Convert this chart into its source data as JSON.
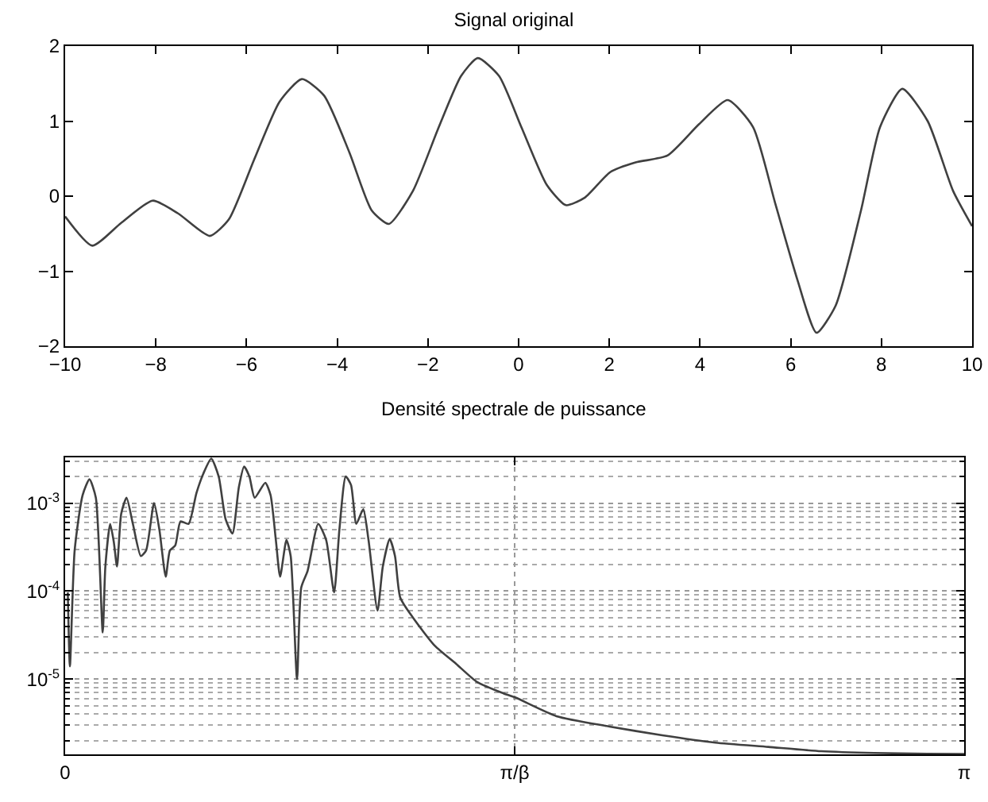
{
  "chart_data": [
    {
      "type": "line",
      "title": "Signal original",
      "x": [
        -10,
        -9.4,
        -8.77,
        -8.07,
        -7.51,
        -6.81,
        -6.39,
        -5.83,
        -5.27,
        -4.78,
        -4.29,
        -3.73,
        -3.24,
        -2.86,
        -2.33,
        -1.76,
        -1.27,
        -0.9,
        -0.43,
        0.06,
        0.62,
        1.04,
        1.46,
        2.02,
        2.58,
        3.28,
        3.98,
        4.61,
        5.17,
        5.66,
        6.15,
        6.57,
        6.99,
        7.55,
        7.97,
        8.46,
        9.02,
        9.58,
        10
      ],
      "series": [
        {
          "color": "#404040",
          "values": [
            -0.27,
            -0.66,
            -0.36,
            -0.06,
            -0.23,
            -0.53,
            -0.31,
            0.49,
            1.26,
            1.56,
            1.34,
            0.58,
            -0.19,
            -0.37,
            0.07,
            0.92,
            1.6,
            1.84,
            1.6,
            0.92,
            0.15,
            -0.12,
            -0.02,
            0.32,
            0.45,
            0.54,
            0.96,
            1.28,
            0.92,
            -0.1,
            -1.12,
            -1.82,
            -1.46,
            -0.19,
            0.92,
            1.43,
            1,
            0.07,
            -0.4
          ]
        }
      ],
      "xlim": [
        -10,
        10
      ],
      "ylim": [
        -2,
        2
      ],
      "xticks": [
        -10,
        -8,
        -6,
        -4,
        -2,
        0,
        2,
        4,
        6,
        8,
        10
      ],
      "yticks": [
        -2,
        -1,
        0,
        1,
        2
      ],
      "grid": false
    },
    {
      "type": "line",
      "title": "Densité spectrale de puissance",
      "x": [
        0.0093,
        0.0167,
        0.0333,
        0.0611,
        0.0851,
        0.1073,
        0.1314,
        0.1406,
        0.1573,
        0.1702,
        0.1813,
        0.1961,
        0.2146,
        0.2368,
        0.2646,
        0.2831,
        0.3108,
        0.3293,
        0.3515,
        0.3663,
        0.3848,
        0.4033,
        0.4311,
        0.4589,
        0.4866,
        0.5107,
        0.5366,
        0.5606,
        0.5847,
        0.6069,
        0.6254,
        0.6439,
        0.6624,
        0.6994,
        0.7179,
        0.7364,
        0.7512,
        0.7734,
        0.7882,
        0.8104,
        0.8252,
        0.8474,
        0.8844,
        0.9122,
        0.9399,
        0.9584,
        0.9806,
        0.9991,
        1.0176,
        1.0417,
        1.0602,
        1.0916,
        1.1101,
        1.1342,
        1.1527,
        1.1712,
        1.2174,
        1.2915,
        1.3655,
        1.4395,
        1.532,
        1.5727,
        1.717,
        1.902,
        2.087,
        2.2721,
        2.4571,
        2.6421,
        2.8271,
        3.0121,
        3.1416
      ],
      "series": [
        {
          "color": "#404040",
          "values": [
            9.7e-05,
            1.4e-05,
            0.00029,
            0.00123,
            0.00186,
            0.00115,
            3.4e-05,
            0.00019,
            0.00058,
            0.00036,
            0.00019,
            0.00076,
            0.00115,
            0.00058,
            0.00025,
            0.00029,
            0.001,
            0.0005,
            0.000146,
            0.00029,
            0.00033,
            0.00062,
            0.00058,
            0.0013,
            0.0023,
            0.0032,
            0.002,
            0.00066,
            0.00045,
            0.0015,
            0.0026,
            0.002,
            0.00115,
            0.0017,
            0.00123,
            0.00038,
            0.000146,
            0.00038,
            0.00025,
            1e-05,
            0.00011,
            0.00017,
            0.00058,
            0.00038,
            9.7e-05,
            0.0005,
            0.002,
            0.0016,
            0.00058,
            0.00085,
            0.00038,
            6e-05,
            0.00019,
            0.00039,
            0.00025,
            8.4e-05,
            4.9e-05,
            2.4e-05,
            1.5e-05,
            9.3e-06,
            6.9e-06,
            6.2e-06,
            3.8e-06,
            2.9e-06,
            2.3e-06,
            1.9e-06,
            1.7e-06,
            1.52e-06,
            1.45e-06,
            1.42e-06,
            1.41e-06
          ]
        }
      ],
      "xlim": [
        0,
        3.1416
      ],
      "ylim": [
        1.4e-06,
        0.0033
      ],
      "xticks": [
        0,
        {
          "value": 1.5708,
          "label": "π/β"
        },
        {
          "value": 3.1416,
          "label": "π"
        }
      ],
      "yticks": [
        {
          "value": 1e-05,
          "label": "10$^{-5}$"
        },
        {
          "value": 0.0001,
          "label": "10$^{-4}$"
        },
        {
          "value": 0.001,
          "label": "10$^{-3}$"
        }
      ],
      "log": true,
      "grid": true
    }
  ]
}
